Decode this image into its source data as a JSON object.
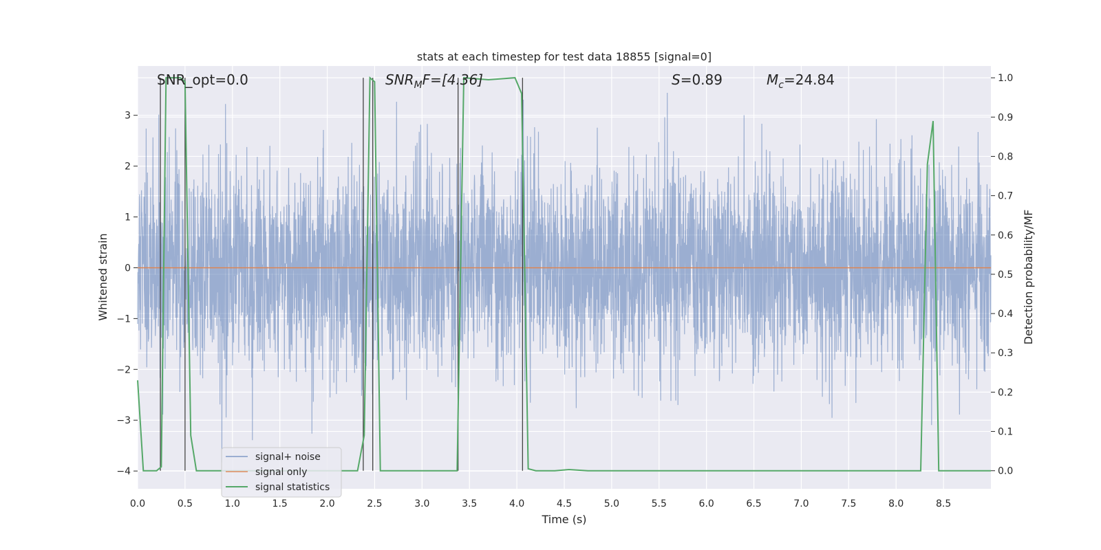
{
  "chart_data": {
    "type": "line",
    "title": "stats at each timestep for test data 18855 [signal=0]",
    "xlabel": "Time (s)",
    "ylabel": "Whitened strain",
    "y2label": "Detection probability/MF",
    "xlim": [
      0.0,
      9.0
    ],
    "ylim": [
      -4.35,
      3.97
    ],
    "y2lim": [
      -0.046,
      1.03
    ],
    "xticks": [
      "0.0",
      "0.5",
      "1.0",
      "1.5",
      "2.0",
      "2.5",
      "3.0",
      "3.5",
      "4.0",
      "4.5",
      "5.0",
      "5.5",
      "6.0",
      "6.5",
      "7.0",
      "7.5",
      "8.0",
      "8.5"
    ],
    "yticks": [
      "−4",
      "−3",
      "−2",
      "−1",
      "0",
      "1",
      "2",
      "3"
    ],
    "y2ticks": [
      "0.0",
      "0.1",
      "0.2",
      "0.3",
      "0.4",
      "0.5",
      "0.6",
      "0.7",
      "0.8",
      "0.9",
      "1.0"
    ],
    "grid": true,
    "legend_position": "lower-left",
    "colors": {
      "signal_noise": "#4c72b0",
      "signal_only": "#dd8452",
      "signal_statistics": "#55a868",
      "vlines": "#444444",
      "background": "#eaeaf2"
    },
    "series": [
      {
        "name": "signal+ noise",
        "kind": "noise",
        "x_range": [
          0.0,
          9.0
        ],
        "typical_range": [
          -1.8,
          1.8
        ],
        "extreme_range": [
          -4.0,
          3.6
        ]
      },
      {
        "name": "signal only",
        "x": [
          0.0,
          9.0
        ],
        "y": [
          0.0,
          0.0
        ]
      },
      {
        "name": "signal statistics",
        "axis": "right",
        "x": [
          0.0,
          0.06,
          0.2,
          0.25,
          0.3,
          0.45,
          0.5,
          0.56,
          0.62,
          2.32,
          2.39,
          2.45,
          2.5,
          2.56,
          3.37,
          3.44,
          3.7,
          3.98,
          4.05,
          4.12,
          4.2,
          4.4,
          4.55,
          4.75,
          8.26,
          8.33,
          8.39,
          8.45,
          9.0
        ],
        "y": [
          0.23,
          0.0,
          0.0,
          0.01,
          1.0,
          1.0,
          0.99,
          0.09,
          0.0,
          0.0,
          0.09,
          1.0,
          0.99,
          0.0,
          0.0,
          1.0,
          0.995,
          1.0,
          0.96,
          0.005,
          0.0,
          0.0,
          0.003,
          0.0,
          0.0,
          0.78,
          0.89,
          0.0,
          0.0
        ]
      }
    ],
    "vlines": [
      0.24,
      0.5,
      2.38,
      2.48,
      3.38,
      4.06
    ],
    "annotations": {
      "snr_opt": "SNR_opt=0.0",
      "snr_mf_main": "SNR",
      "snr_mf_sub": "M",
      "snr_mf_rest": "F=[4.36]",
      "s_main": "S",
      "s_rest": "=0.89",
      "mc_main": "M",
      "mc_sub": "c",
      "mc_rest": "=24.84"
    }
  }
}
